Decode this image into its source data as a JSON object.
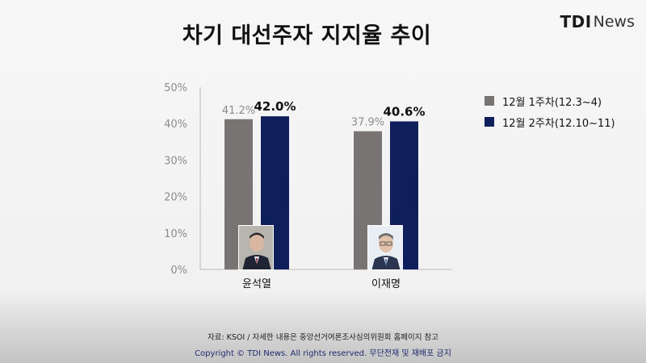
{
  "header": {
    "title": "차기 대선주자 지지율 추이",
    "logo_mark": "TDI",
    "logo_sub": "News"
  },
  "colors": {
    "series_1": "#787473",
    "series_2": "#0f1f5c",
    "axis_text": "#8c8c8c",
    "footer_copy": "#1f2a6e"
  },
  "chart_data": {
    "type": "bar",
    "categories": [
      "윤석열",
      "이재명"
    ],
    "series": [
      {
        "name": "12월 1주차(12.3~4)",
        "values": [
          41.2,
          37.9
        ],
        "labels": [
          "41.2%",
          "37.9%"
        ]
      },
      {
        "name": "12월 2주차(12.10~11)",
        "values": [
          42.0,
          40.6
        ],
        "labels": [
          "42.0%",
          "40.6%"
        ]
      }
    ],
    "y_ticks": [
      0,
      10,
      20,
      30,
      40,
      50
    ],
    "y_tick_labels": [
      "0%",
      "10%",
      "20%",
      "30%",
      "40%",
      "50%"
    ],
    "ylim": [
      0,
      50
    ],
    "legend_position": "right",
    "grid": false
  },
  "photos": [
    {
      "name": "candidate-photo-yoon",
      "icon": "person-photo-icon"
    },
    {
      "name": "candidate-photo-lee",
      "icon": "person-photo-icon"
    }
  ],
  "footer": {
    "source": "자료: KSOI / 자세한 내용은 중앙선거여론조사심의위원회 홈페이지 참고",
    "copyright": "Copyright © TDI News. All rights reserved. 무단전재 및 재배포 금지"
  }
}
